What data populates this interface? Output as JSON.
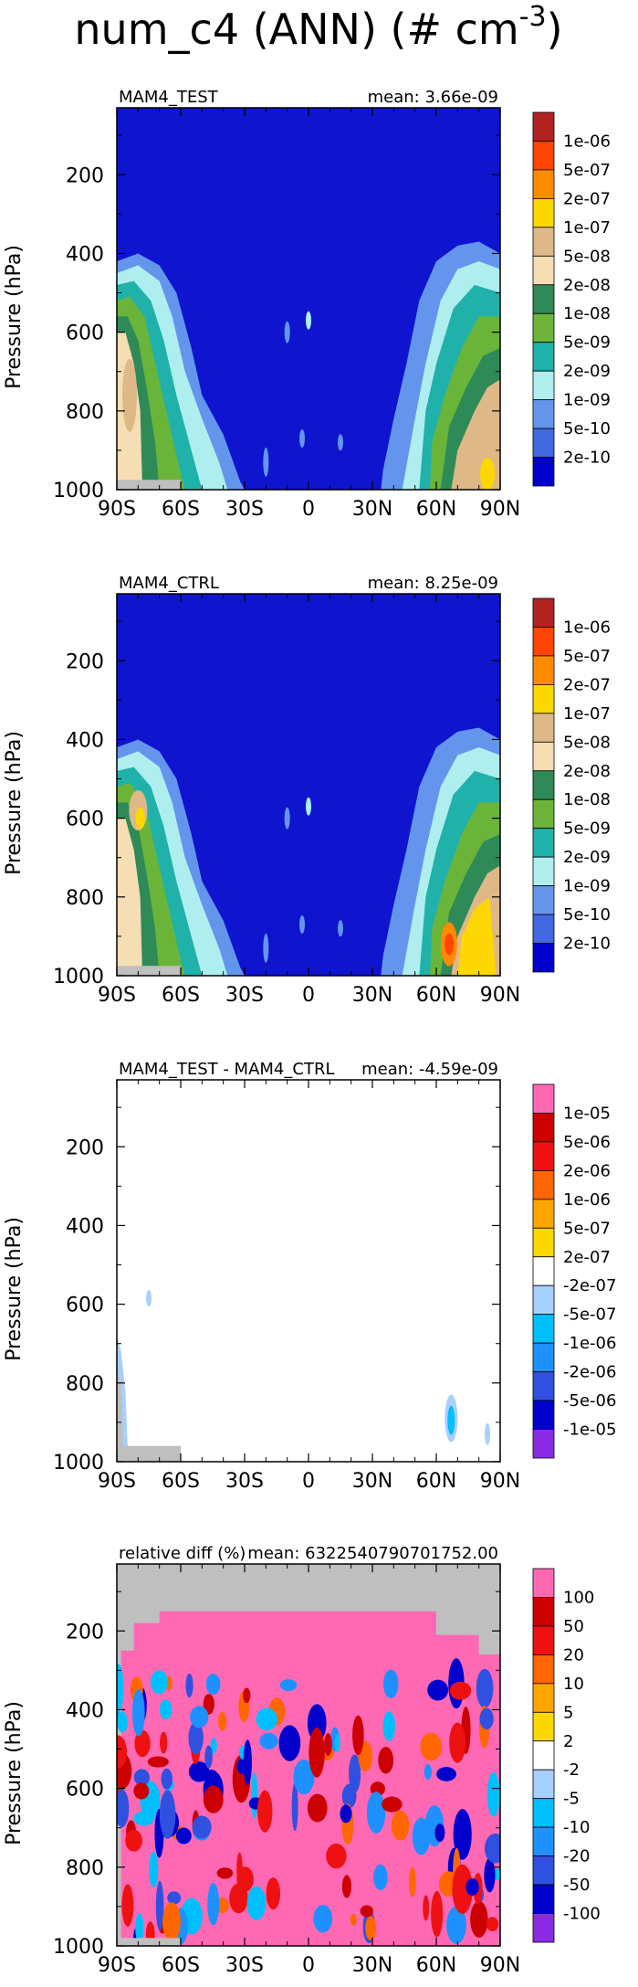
{
  "figure": {
    "title": "num_c4 (ANN) (# cm",
    "title_sup": "-3"
  },
  "chart_data": [
    {
      "type": "heatmap",
      "left_title": "MAM4_TEST",
      "right_title": "mean: 3.66e-09",
      "xlabel": "",
      "ylabel": "Pressure (hPa)",
      "x_ticklabels": [
        "90S",
        "60S",
        "30S",
        "0",
        "30N",
        "60N",
        "90N"
      ],
      "y_ticklabels": [
        "200",
        "400",
        "600",
        "800",
        "1000"
      ],
      "xlim": [
        -90,
        90
      ],
      "ylim": [
        1000,
        30
      ],
      "colorbar_labels": [
        "1e-06",
        "5e-07",
        "2e-07",
        "1e-07",
        "5e-08",
        "2e-08",
        "1e-08",
        "5e-09",
        "2e-09",
        "1e-09",
        "5e-10",
        "2e-10"
      ],
      "colorbar_colors": [
        "#b22222",
        "#ff4500",
        "#ff8c00",
        "#ffd700",
        "#deb887",
        "#f5deb3",
        "#2e8b57",
        "#6bb43a",
        "#20b2aa",
        "#afeeee",
        "#6495ed",
        "#4169e1",
        "#0000cd"
      ],
      "background_color": "#0f14cf"
    },
    {
      "type": "heatmap",
      "left_title": "MAM4_CTRL",
      "right_title": "mean: 8.25e-09",
      "xlabel": "",
      "ylabel": "Pressure (hPa)",
      "x_ticklabels": [
        "90S",
        "60S",
        "30S",
        "0",
        "30N",
        "60N",
        "90N"
      ],
      "y_ticklabels": [
        "200",
        "400",
        "600",
        "800",
        "1000"
      ],
      "xlim": [
        -90,
        90
      ],
      "ylim": [
        1000,
        30
      ],
      "colorbar_labels": [
        "1e-06",
        "5e-07",
        "2e-07",
        "1e-07",
        "5e-08",
        "2e-08",
        "1e-08",
        "5e-09",
        "2e-09",
        "1e-09",
        "5e-10",
        "2e-10"
      ],
      "colorbar_colors": [
        "#b22222",
        "#ff4500",
        "#ff8c00",
        "#ffd700",
        "#deb887",
        "#f5deb3",
        "#2e8b57",
        "#6bb43a",
        "#20b2aa",
        "#afeeee",
        "#6495ed",
        "#4169e1",
        "#0000cd"
      ],
      "background_color": "#0f14cf"
    },
    {
      "type": "heatmap",
      "left_title": "MAM4_TEST - MAM4_CTRL",
      "right_title": "mean: -4.59e-09",
      "xlabel": "",
      "ylabel": "Pressure (hPa)",
      "x_ticklabels": [
        "90S",
        "60S",
        "30S",
        "0",
        "30N",
        "60N",
        "90N"
      ],
      "y_ticklabels": [
        "200",
        "400",
        "600",
        "800",
        "1000"
      ],
      "xlim": [
        -90,
        90
      ],
      "ylim": [
        1000,
        30
      ],
      "colorbar_labels": [
        "1e-05",
        "5e-06",
        "2e-06",
        "1e-06",
        "5e-07",
        "2e-07",
        "-2e-07",
        "-5e-07",
        "-1e-06",
        "-2e-06",
        "-5e-06",
        "-1e-05"
      ],
      "colorbar_colors": [
        "#ff69b4",
        "#cc0000",
        "#ee1111",
        "#ff6600",
        "#ffa500",
        "#ffd700",
        "#ffffff",
        "#a8d0ff",
        "#00bfff",
        "#1e90ff",
        "#3050e0",
        "#0000cd",
        "#8a2be2"
      ],
      "background_color": "#ffffff"
    },
    {
      "type": "heatmap",
      "left_title": "relative diff (%)",
      "right_title": "mean: 6322540790701752.00",
      "xlabel": "",
      "ylabel": "Pressure (hPa)",
      "x_ticklabels": [
        "90S",
        "60S",
        "30S",
        "0",
        "30N",
        "60N",
        "90N"
      ],
      "y_ticklabels": [
        "200",
        "400",
        "600",
        "800",
        "1000"
      ],
      "xlim": [
        -90,
        90
      ],
      "ylim": [
        1000,
        30
      ],
      "colorbar_labels": [
        "100",
        "50",
        "20",
        "10",
        "5",
        "2",
        "-2",
        "-5",
        "-10",
        "-20",
        "-50",
        "-100"
      ],
      "colorbar_colors": [
        "#ff69b4",
        "#cc0000",
        "#ee1111",
        "#ff6600",
        "#ffa500",
        "#ffd700",
        "#ffffff",
        "#a8d0ff",
        "#00bfff",
        "#1e90ff",
        "#3050e0",
        "#0000cd",
        "#8a2be2"
      ],
      "background_color": "#ff69b4"
    }
  ]
}
